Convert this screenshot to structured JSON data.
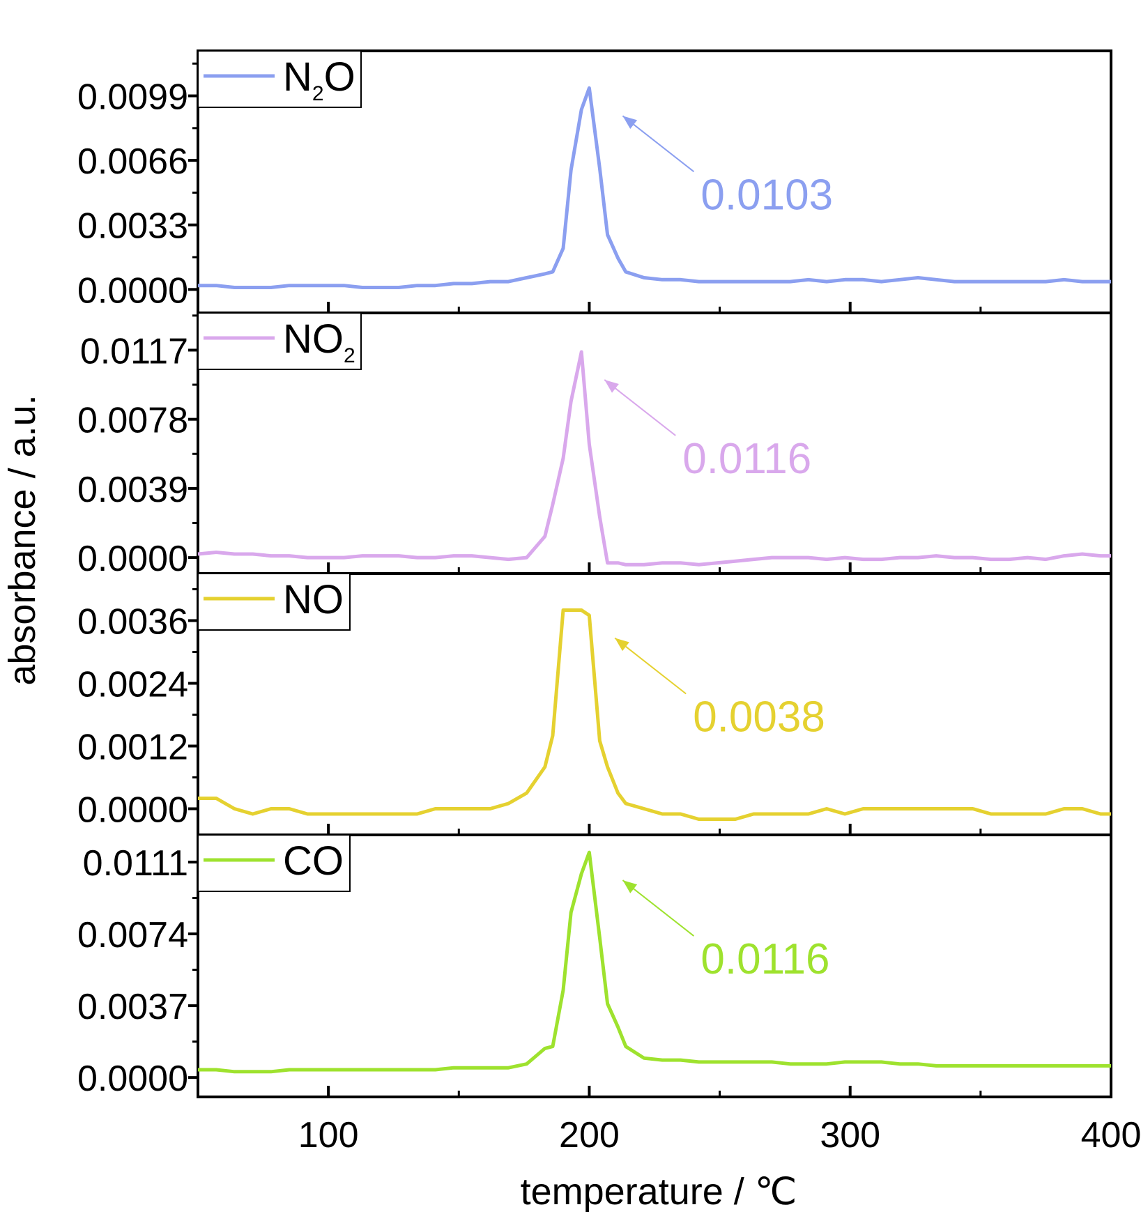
{
  "chart_data": {
    "type": "line",
    "xlabel": "temperature / ℃",
    "ylabel": "absorbance / a.u.",
    "xlim": [
      50,
      400
    ],
    "xticks": [
      100,
      200,
      300,
      400
    ],
    "x": [
      50,
      57,
      64,
      71,
      78,
      85,
      92,
      99,
      106,
      113,
      120,
      127,
      134,
      141,
      148,
      155,
      162,
      169,
      176,
      183,
      186,
      190,
      193,
      197,
      200,
      204,
      207,
      211,
      214,
      221,
      228,
      235,
      242,
      249,
      256,
      263,
      270,
      277,
      284,
      291,
      298,
      305,
      312,
      319,
      326,
      333,
      340,
      347,
      354,
      361,
      368,
      375,
      382,
      389,
      396,
      400
    ],
    "panels": [
      {
        "legend": {
          "main": "N",
          "sub": "2",
          "tail": "O"
        },
        "color": "#8b9ff0",
        "ylim": [
          -0.0012,
          0.0122
        ],
        "yticks": [
          0.0,
          0.0033,
          0.0066,
          0.0099
        ],
        "ytick_labels": [
          "0.0000",
          "0.0033",
          "0.0066",
          "0.0099"
        ],
        "annotation": {
          "label": "0.0103",
          "x": 200,
          "y": 0.0103
        },
        "y": [
          0.0002,
          0.0002,
          0.0001,
          0.0001,
          0.0001,
          0.0002,
          0.0002,
          0.0002,
          0.0002,
          0.0001,
          0.0001,
          0.0001,
          0.0002,
          0.0002,
          0.0003,
          0.0003,
          0.0004,
          0.0004,
          0.0006,
          0.0008,
          0.0009,
          0.0021,
          0.0061,
          0.0092,
          0.0103,
          0.0062,
          0.0028,
          0.0016,
          0.0009,
          0.0006,
          0.0005,
          0.0005,
          0.0004,
          0.0004,
          0.0004,
          0.0004,
          0.0004,
          0.0004,
          0.0005,
          0.0004,
          0.0005,
          0.0005,
          0.0004,
          0.0005,
          0.0006,
          0.0005,
          0.0004,
          0.0004,
          0.0004,
          0.0004,
          0.0004,
          0.0004,
          0.0005,
          0.0004,
          0.0004,
          0.0004
        ]
      },
      {
        "legend": {
          "main": "NO",
          "sub": "2",
          "tail": ""
        },
        "color": "#d9a8ec",
        "ylim": [
          -0.0009,
          0.0138
        ],
        "yticks": [
          0.0,
          0.0039,
          0.0078,
          0.0117
        ],
        "ytick_labels": [
          "0.0000",
          "0.0039",
          "0.0078",
          "0.0117"
        ],
        "annotation": {
          "label": "0.0116",
          "x": 193,
          "y": 0.0116
        },
        "y": [
          0.0002,
          0.0003,
          0.0002,
          0.0002,
          0.0001,
          0.0001,
          0.0,
          0.0,
          0.0,
          0.0001,
          0.0001,
          0.0001,
          0.0,
          0.0,
          0.0001,
          0.0001,
          0.0,
          -0.0001,
          0.0,
          0.0012,
          0.003,
          0.0056,
          0.0088,
          0.0116,
          0.0064,
          0.0023,
          -0.0003,
          -0.0003,
          -0.0004,
          -0.0004,
          -0.0003,
          -0.0003,
          -0.0004,
          -0.0003,
          -0.0002,
          -0.0001,
          0.0,
          0.0,
          0.0,
          -0.0001,
          0.0,
          -0.0001,
          -0.0001,
          0.0,
          0.0,
          0.0001,
          0.0,
          0.0,
          -0.0001,
          -0.0001,
          0.0,
          -0.0001,
          0.0001,
          0.0002,
          0.0001,
          0.0001
        ]
      },
      {
        "legend": {
          "main": "NO",
          "sub": "",
          "tail": ""
        },
        "color": "#e5d130",
        "ylim": [
          -0.0005,
          0.0045
        ],
        "yticks": [
          0.0,
          0.0012,
          0.0024,
          0.0036
        ],
        "ytick_labels": [
          "0.0000",
          "0.0012",
          "0.0024",
          "0.0036"
        ],
        "annotation": {
          "label": "0.0038",
          "x": 197,
          "y": 0.0038
        },
        "y": [
          0.0002,
          0.0002,
          0.0,
          -0.0001,
          0.0,
          0.0,
          -0.0001,
          -0.0001,
          -0.0001,
          -0.0001,
          -0.0001,
          -0.0001,
          -0.0001,
          0.0,
          0.0,
          0.0,
          0.0,
          0.0001,
          0.0003,
          0.0008,
          0.0014,
          0.0038,
          0.0038,
          0.0038,
          0.0037,
          0.0013,
          0.0008,
          0.0003,
          0.0001,
          0.0,
          -0.0001,
          -0.0001,
          -0.0002,
          -0.0002,
          -0.0002,
          -0.0001,
          -0.0001,
          -0.0001,
          -0.0001,
          0.0,
          -0.0001,
          0.0,
          0.0,
          0.0,
          0.0,
          0.0,
          0.0,
          0.0,
          -0.0001,
          -0.0001,
          -0.0001,
          -0.0001,
          0.0,
          0.0,
          -0.0001,
          -0.0001
        ]
      },
      {
        "legend": {
          "main": "CO",
          "sub": "",
          "tail": ""
        },
        "color": "#9ee22e",
        "ylim": [
          -0.001,
          0.0125
        ],
        "yticks": [
          0.0,
          0.0037,
          0.0074,
          0.0111
        ],
        "ytick_labels": [
          "0.0000",
          "0.0037",
          "0.0074",
          "0.0111"
        ],
        "annotation": {
          "label": "0.0116",
          "x": 200,
          "y": 0.0116
        },
        "y": [
          0.0004,
          0.0004,
          0.0003,
          0.0003,
          0.0003,
          0.0004,
          0.0004,
          0.0004,
          0.0004,
          0.0004,
          0.0004,
          0.0004,
          0.0004,
          0.0004,
          0.0005,
          0.0005,
          0.0005,
          0.0005,
          0.0007,
          0.0015,
          0.0016,
          0.0045,
          0.0085,
          0.0105,
          0.0116,
          0.0072,
          0.0038,
          0.0026,
          0.0016,
          0.001,
          0.0009,
          0.0009,
          0.0008,
          0.0008,
          0.0008,
          0.0008,
          0.0008,
          0.0007,
          0.0007,
          0.0007,
          0.0008,
          0.0008,
          0.0008,
          0.0007,
          0.0007,
          0.0006,
          0.0006,
          0.0006,
          0.0006,
          0.0006,
          0.0006,
          0.0006,
          0.0006,
          0.0006,
          0.0006,
          0.0006
        ]
      }
    ]
  }
}
